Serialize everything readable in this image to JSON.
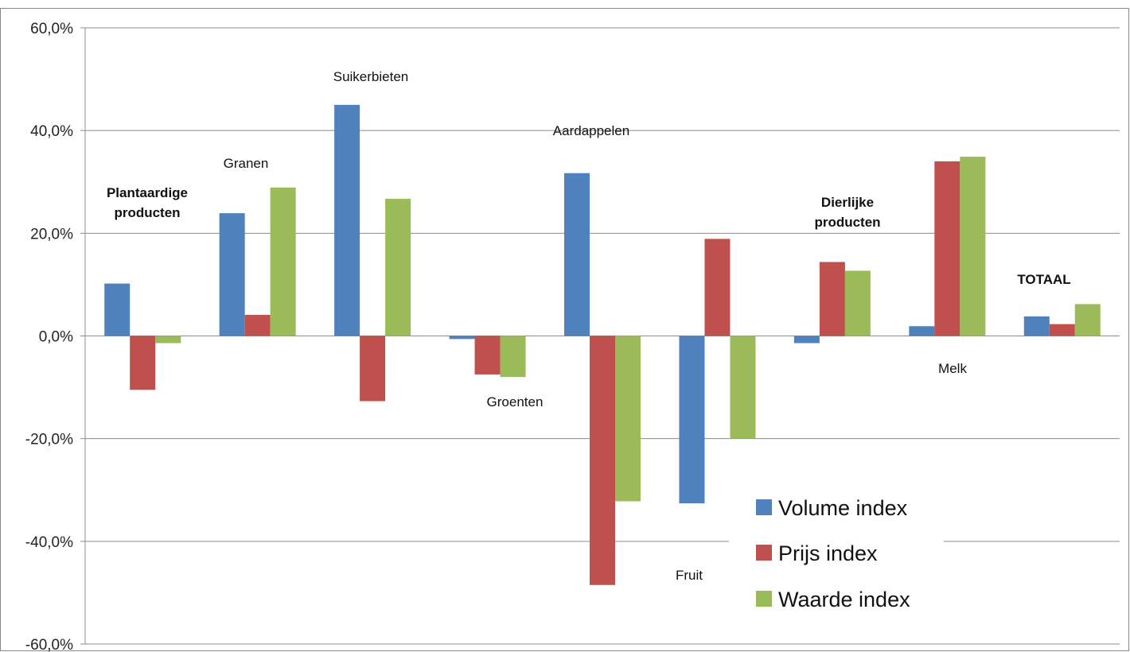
{
  "chart_data": {
    "type": "bar",
    "title": "",
    "xlabel": "",
    "ylabel": "",
    "ylim": [
      -60,
      60
    ],
    "yticks": [
      60,
      40,
      20,
      0,
      -20,
      -40,
      -60
    ],
    "ytick_labels": [
      "60,0%",
      "40,0%",
      "20,0%",
      "0,0%",
      "-20,0%",
      "-40,0%",
      "-60,0%"
    ],
    "grid": true,
    "legend_position": "bottom-right",
    "categories": [
      "Plantaardige producten",
      "Granen",
      "Suikerbieten",
      "Groenten",
      "Aardappelen",
      "Fruit",
      "Dierlijke producten",
      "Melk",
      "TOTAAL"
    ],
    "category_labels": [
      {
        "lines": [
          "Plantaardige",
          "producten"
        ],
        "bold": true
      },
      {
        "lines": [
          "Granen"
        ],
        "bold": false
      },
      {
        "lines": [
          "Suikerbieten"
        ],
        "bold": false
      },
      {
        "lines": [
          "Groenten"
        ],
        "bold": false
      },
      {
        "lines": [
          "Aardappelen"
        ],
        "bold": false
      },
      {
        "lines": [
          "Fruit"
        ],
        "bold": false
      },
      {
        "lines": [
          "Dierlijke",
          "producten"
        ],
        "bold": true
      },
      {
        "lines": [
          "Melk"
        ],
        "bold": false
      },
      {
        "lines": [
          "TOTAAL"
        ],
        "bold": true
      }
    ],
    "series": [
      {
        "name": "Volume index",
        "color": "#4F81BD",
        "values": [
          10.2,
          23.9,
          45.0,
          -0.6,
          31.7,
          -32.6,
          -1.4,
          1.9,
          3.8
        ]
      },
      {
        "name": "Prijs index",
        "color": "#C0504D",
        "values": [
          -10.5,
          4.1,
          -12.7,
          -7.5,
          -48.5,
          18.9,
          14.4,
          34.0,
          2.3
        ]
      },
      {
        "name": "Waarde index",
        "color": "#9BBB59",
        "values": [
          -1.4,
          28.9,
          26.7,
          -8.0,
          -32.2,
          -19.9,
          12.7,
          34.9,
          6.2
        ]
      }
    ]
  }
}
